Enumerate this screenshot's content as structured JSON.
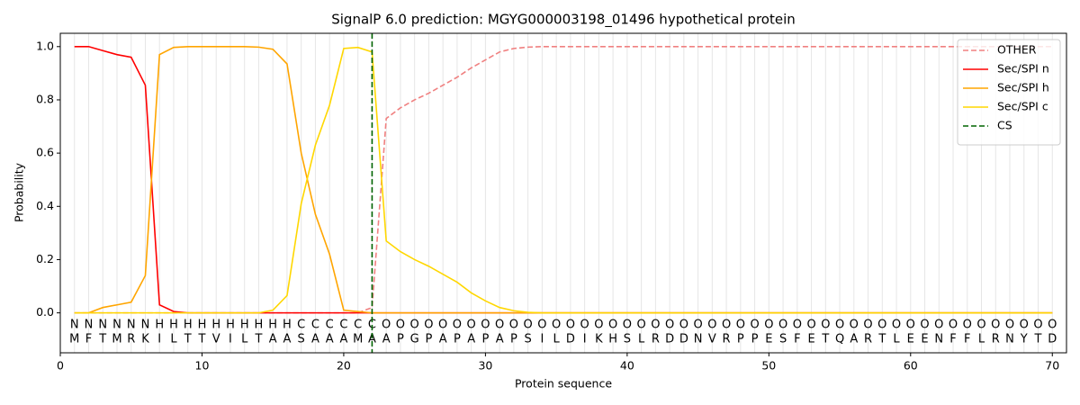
{
  "chart_data": {
    "type": "line",
    "title": "SignalP 6.0 prediction: MGYG000003198_01496 hypothetical protein",
    "x_label": "Protein sequence",
    "y_label": "Probability",
    "x": [
      1,
      2,
      3,
      4,
      5,
      6,
      7,
      8,
      9,
      10,
      11,
      12,
      13,
      14,
      15,
      16,
      17,
      18,
      19,
      20,
      21,
      22,
      23,
      24,
      25,
      26,
      27,
      28,
      29,
      30,
      31,
      32,
      33,
      34,
      35,
      36,
      37,
      38,
      39,
      40,
      41,
      42,
      43,
      44,
      45,
      46,
      47,
      48,
      49,
      50,
      51,
      52,
      53,
      54,
      55,
      56,
      57,
      58,
      59,
      60,
      61,
      62,
      63,
      64,
      65,
      66,
      67,
      68,
      69,
      70
    ],
    "residues": [
      "M",
      "F",
      "T",
      "M",
      "R",
      "K",
      "I",
      "L",
      "T",
      "T",
      "V",
      "I",
      "L",
      "T",
      "A",
      "A",
      "S",
      "A",
      "A",
      "A",
      "M",
      "A",
      "A",
      "P",
      "G",
      "P",
      "A",
      "P",
      "A",
      "P",
      "A",
      "P",
      "S",
      "I",
      "L",
      "D",
      "I",
      "K",
      "H",
      "S",
      "L",
      "R",
      "D",
      "D",
      "N",
      "V",
      "R",
      "P",
      "P",
      "E",
      "S",
      "F",
      "E",
      "T",
      "Q",
      "A",
      "R",
      "T",
      "L",
      "E",
      "E",
      "N",
      "F",
      "F",
      "L",
      "R",
      "N",
      "Y",
      "T",
      "D"
    ],
    "regions": [
      "N",
      "N",
      "N",
      "N",
      "N",
      "N",
      "H",
      "H",
      "H",
      "H",
      "H",
      "H",
      "H",
      "H",
      "H",
      "H",
      "C",
      "C",
      "C",
      "C",
      "C",
      "C",
      "O",
      "O",
      "O",
      "O",
      "O",
      "O",
      "O",
      "O",
      "O",
      "O",
      "O",
      "O",
      "O",
      "O",
      "O",
      "O",
      "O",
      "O",
      "O",
      "O",
      "O",
      "O",
      "O",
      "O",
      "O",
      "O",
      "O",
      "O",
      "O",
      "O",
      "O",
      "O",
      "O",
      "O",
      "O",
      "O",
      "O",
      "O",
      "O",
      "O",
      "O",
      "O",
      "O",
      "O",
      "O",
      "O",
      "O",
      "O"
    ],
    "region_colors": {
      "N": "#ff0000",
      "H": "#ffa500",
      "C": "#ffd700",
      "O": "#808080"
    },
    "series": [
      {
        "name": "OTHER",
        "color": "#f08080",
        "dashed": true,
        "values": [
          0,
          0,
          0,
          0,
          0,
          0,
          0,
          0,
          0,
          0,
          0,
          0,
          0,
          0,
          0,
          0,
          0,
          0,
          0,
          0,
          0,
          0.02,
          0.73,
          0.77,
          0.8,
          0.825,
          0.855,
          0.885,
          0.92,
          0.95,
          0.98,
          0.993,
          0.998,
          1,
          1,
          1,
          1,
          1,
          1,
          1,
          1,
          1,
          1,
          1,
          1,
          1,
          1,
          1,
          1,
          1,
          1,
          1,
          1,
          1,
          1,
          1,
          1,
          1,
          1,
          1,
          1,
          1,
          1,
          1,
          1,
          1,
          1,
          1,
          1,
          1
        ]
      },
      {
        "name": "Sec/SPI n",
        "color": "#ff0000",
        "dashed": false,
        "values": [
          1,
          1,
          0.985,
          0.97,
          0.96,
          0.855,
          0.03,
          0.005,
          0,
          0,
          0,
          0,
          0,
          0,
          0,
          0,
          0,
          0,
          0,
          0,
          0,
          0,
          0,
          0,
          0,
          0,
          0,
          0,
          0,
          0,
          0,
          0,
          0,
          0,
          0,
          0,
          0,
          0,
          0,
          0,
          0,
          0,
          0,
          0,
          0,
          0,
          0,
          0,
          0,
          0,
          0,
          0,
          0,
          0,
          0,
          0,
          0,
          0,
          0,
          0,
          0,
          0,
          0,
          0,
          0,
          0,
          0,
          0,
          0,
          0
        ]
      },
      {
        "name": "Sec/SPI h",
        "color": "#ffa500",
        "dashed": false,
        "values": [
          0,
          0,
          0.02,
          0.03,
          0.04,
          0.14,
          0.97,
          0.997,
          1,
          1,
          1,
          1,
          1,
          0.998,
          0.99,
          0.935,
          0.6,
          0.37,
          0.22,
          0.01,
          0.005,
          0,
          0,
          0,
          0,
          0,
          0,
          0,
          0,
          0,
          0,
          0,
          0,
          0,
          0,
          0,
          0,
          0,
          0,
          0,
          0,
          0,
          0,
          0,
          0,
          0,
          0,
          0,
          0,
          0,
          0,
          0,
          0,
          0,
          0,
          0,
          0,
          0,
          0,
          0,
          0,
          0,
          0,
          0,
          0,
          0,
          0,
          0,
          0,
          0
        ]
      },
      {
        "name": "Sec/SPI c",
        "color": "#ffd700",
        "dashed": false,
        "values": [
          0,
          0,
          0,
          0,
          0,
          0,
          0,
          0,
          0,
          0,
          0,
          0,
          0,
          0,
          0.01,
          0.065,
          0.41,
          0.63,
          0.78,
          0.993,
          0.997,
          0.98,
          0.27,
          0.23,
          0.2,
          0.175,
          0.145,
          0.115,
          0.075,
          0.045,
          0.02,
          0.008,
          0.002,
          0,
          0,
          0,
          0,
          0,
          0,
          0,
          0,
          0,
          0,
          0,
          0,
          0,
          0,
          0,
          0,
          0,
          0,
          0,
          0,
          0,
          0,
          0,
          0,
          0,
          0,
          0,
          0,
          0,
          0,
          0,
          0,
          0,
          0,
          0,
          0,
          0
        ]
      }
    ],
    "vlines": [
      {
        "name": "CS",
        "color": "#006400",
        "x": 22
      }
    ],
    "xlim": [
      0,
      71
    ],
    "ylim": [
      -0.15,
      1.05
    ],
    "xticks": [
      0,
      10,
      20,
      30,
      40,
      50,
      60,
      70
    ],
    "yticks": [
      {
        "value": 0,
        "label": "0.0"
      },
      0.2,
      0.4,
      0.6,
      0.8,
      {
        "value": 1,
        "label": "1.0"
      }
    ],
    "legend": "upper right"
  }
}
